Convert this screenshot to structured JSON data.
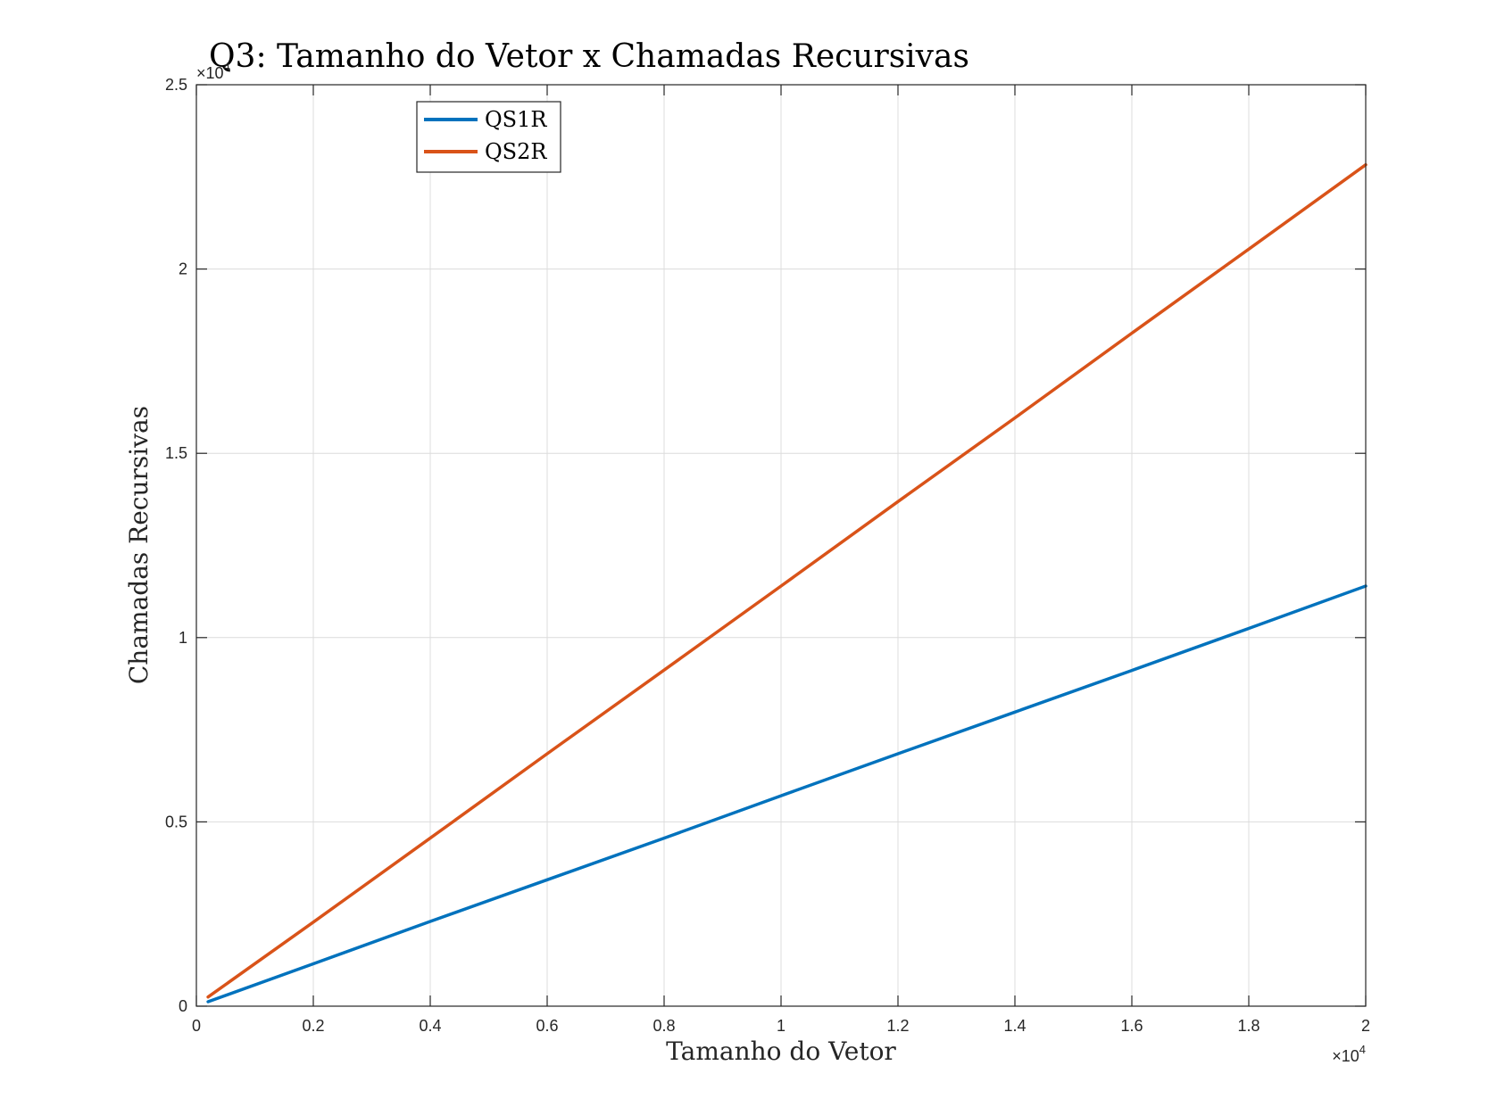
{
  "chart_data": {
    "type": "line",
    "title": "Q3: Tamanho do Vetor x Chamadas Recursivas",
    "xlabel": "Tamanho do Vetor",
    "ylabel": "Chamadas Recursivas",
    "xlim": [
      0,
      20000
    ],
    "ylim": [
      0,
      25000
    ],
    "x_ticks": [
      0,
      2000,
      4000,
      6000,
      8000,
      10000,
      12000,
      14000,
      16000,
      18000,
      20000
    ],
    "y_ticks": [
      0,
      5000,
      10000,
      15000,
      20000,
      25000
    ],
    "x_tick_labels": [
      "0",
      "0.2",
      "0.4",
      "0.6",
      "0.8",
      "1",
      "1.2",
      "1.4",
      "1.6",
      "1.8",
      "2"
    ],
    "y_tick_labels": [
      "0",
      "0.5",
      "1",
      "1.5",
      "2",
      "2.5"
    ],
    "x_exponent_label": "×10",
    "x_exponent_power": "4",
    "y_exponent_label": "×10",
    "y_exponent_power": "4",
    "grid": true,
    "legend_position": "top-left",
    "series": [
      {
        "name": "QS1R",
        "color": "#0072BD",
        "x": [
          200,
          2000,
          4000,
          6000,
          8000,
          10000,
          12000,
          14000,
          16000,
          18000,
          20000
        ],
        "y": [
          120,
          1150,
          2300,
          3430,
          4560,
          5710,
          6850,
          7980,
          9110,
          10250,
          11400
        ]
      },
      {
        "name": "QS2R",
        "color": "#D95319",
        "x": [
          200,
          2000,
          4000,
          6000,
          8000,
          10000,
          12000,
          14000,
          16000,
          18000,
          20000
        ],
        "y": [
          250,
          2280,
          4560,
          6850,
          9120,
          11400,
          13690,
          15960,
          18260,
          20540,
          22830
        ]
      }
    ]
  }
}
